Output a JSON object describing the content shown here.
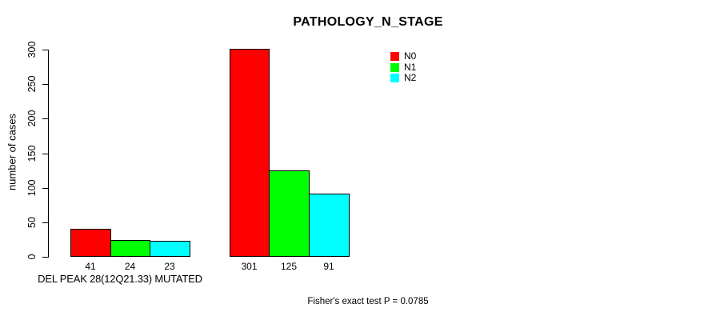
{
  "chart_data": {
    "type": "bar",
    "title": "PATHOLOGY_N_STAGE",
    "ylabel": "number of cases",
    "footnote": "Fisher's exact test P = 0.0785",
    "ylim": [
      0,
      300
    ],
    "yticks": [
      0,
      50,
      100,
      150,
      200,
      250,
      300
    ],
    "grid": false,
    "legend_position": "top-right",
    "bar_value_labels_shown": true,
    "groups": [
      {
        "label": "DEL PEAK 28(12Q21.33) MUTATED"
      },
      {
        "label": ""
      }
    ],
    "series": [
      {
        "name": "N0",
        "color": "#ff0000",
        "values": [
          41,
          301
        ]
      },
      {
        "name": "N1",
        "color": "#00ff00",
        "values": [
          24,
          125
        ]
      },
      {
        "name": "N2",
        "color": "#00ffff",
        "values": [
          23,
          91
        ]
      }
    ]
  }
}
